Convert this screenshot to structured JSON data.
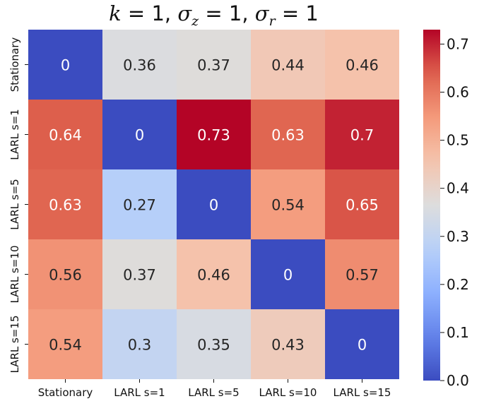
{
  "chart_data": {
    "type": "heatmap",
    "title": "k = 1, σz = 1, σr = 1",
    "title_parts": {
      "k": "1",
      "sigma_z": "1",
      "sigma_r": "1"
    },
    "x_categories": [
      "Stationary",
      "LARL s=1",
      "LARL s=5",
      "LARL s=10",
      "LARL s=15"
    ],
    "y_categories": [
      "Stationary",
      "LARL s=1",
      "LARL s=5",
      "LARL s=10",
      "LARL s=15"
    ],
    "values": [
      [
        0,
        0.36,
        0.37,
        0.44,
        0.46
      ],
      [
        0.64,
        0,
        0.73,
        0.63,
        0.7
      ],
      [
        0.63,
        0.27,
        0,
        0.54,
        0.65
      ],
      [
        0.56,
        0.37,
        0.46,
        0,
        0.57
      ],
      [
        0.54,
        0.3,
        0.35,
        0.43,
        0
      ]
    ],
    "value_labels": [
      [
        "0",
        "0.36",
        "0.37",
        "0.44",
        "0.46"
      ],
      [
        "0.64",
        "0",
        "0.73",
        "0.63",
        "0.7"
      ],
      [
        "0.63",
        "0.27",
        "0",
        "0.54",
        "0.65"
      ],
      [
        "0.56",
        "0.37",
        "0.46",
        "0",
        "0.57"
      ],
      [
        "0.54",
        "0.3",
        "0.35",
        "0.43",
        "0"
      ]
    ],
    "colorbar": {
      "colormap": "coolwarm",
      "range": [
        0,
        0.73
      ],
      "ticks": [
        0.0,
        0.1,
        0.2,
        0.3,
        0.4,
        0.5,
        0.6,
        0.7
      ],
      "tick_labels": [
        "0.0",
        "0.1",
        "0.2",
        "0.3",
        "0.4",
        "0.5",
        "0.6",
        "0.7"
      ]
    },
    "xlabel": "",
    "ylabel": ""
  }
}
